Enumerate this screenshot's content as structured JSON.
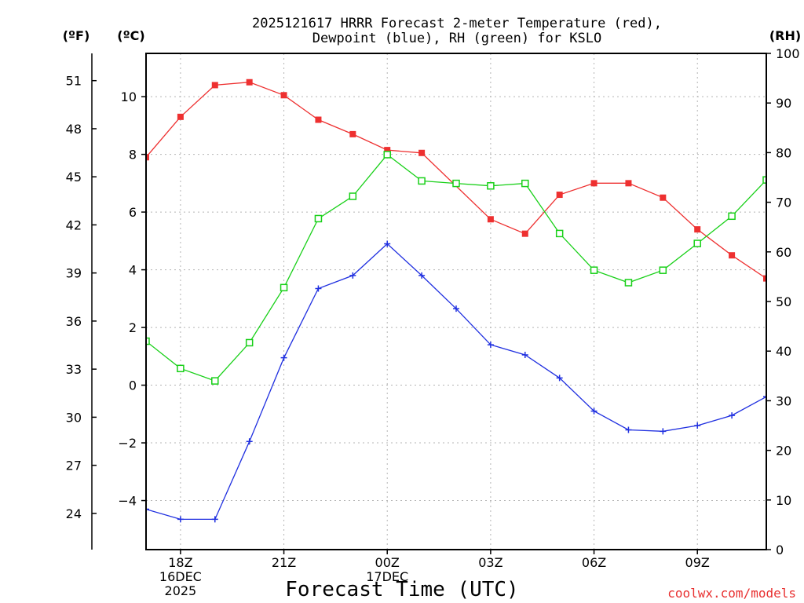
{
  "chart_data": {
    "type": "line",
    "title_line1": "2025121617 HRRR Forecast 2-meter Temperature (red),",
    "title_line2": "Dewpoint (blue), RH (green) for KSLO",
    "xlabel": "Forecast Time (UTC)",
    "credit": "coolwx.com/models",
    "units": {
      "fahrenheit": "(ºF)",
      "celsius": "(ºC)",
      "rh": "(RH)"
    },
    "x_range": [
      17,
      35
    ],
    "x_ticks": [
      {
        "x": 18,
        "lines": [
          "18Z",
          "16DEC",
          "2025"
        ]
      },
      {
        "x": 21,
        "lines": [
          "21Z"
        ]
      },
      {
        "x": 24,
        "lines": [
          "00Z",
          "17DEC"
        ]
      },
      {
        "x": 27,
        "lines": [
          "03Z"
        ]
      },
      {
        "x": 30,
        "lines": [
          "06Z"
        ]
      },
      {
        "x": 33,
        "lines": [
          "09Z"
        ]
      }
    ],
    "y_left_celsius": {
      "range": [
        -5.7,
        11.5
      ],
      "ticks": [
        -4,
        -2,
        0,
        2,
        4,
        6,
        8,
        10
      ],
      "tick_labels": [
        "−4",
        "−2",
        "0",
        "2",
        "4",
        "6",
        "8",
        "10"
      ]
    },
    "y_left_fahrenheit": {
      "ticks": [
        24,
        27,
        30,
        33,
        36,
        39,
        42,
        45,
        48,
        51
      ],
      "tick_labels": [
        "24",
        "27",
        "30",
        "33",
        "36",
        "39",
        "42",
        "45",
        "48",
        "51"
      ]
    },
    "y_right_rh": {
      "range": [
        0,
        100
      ],
      "ticks": [
        0,
        10,
        20,
        30,
        40,
        50,
        60,
        70,
        80,
        90,
        100
      ],
      "tick_labels": [
        "0",
        "10",
        "20",
        "30",
        "40",
        "50",
        "60",
        "70",
        "80",
        "90",
        "100"
      ]
    },
    "grid": true,
    "series": [
      {
        "name": "Temperature",
        "color": "#ee3030",
        "marker": "filled-square",
        "axis": "celsius",
        "x": [
          17,
          18,
          19,
          20,
          21,
          22,
          23,
          24,
          25,
          26,
          27,
          28,
          29,
          30,
          31,
          32,
          33,
          34,
          35
        ],
        "values": [
          7.9,
          9.3,
          10.4,
          10.5,
          10.05,
          9.2,
          8.7,
          8.15,
          8.05,
          null,
          5.75,
          5.25,
          6.6,
          7.0,
          7.0,
          6.5,
          5.4,
          4.5,
          3.7
        ]
      },
      {
        "name": "Dewpoint",
        "color": "#2030e0",
        "marker": "plus",
        "axis": "celsius",
        "x": [
          17,
          18,
          19,
          20,
          21,
          22,
          23,
          24,
          25,
          26,
          27,
          28,
          29,
          30,
          31,
          32,
          33,
          34,
          35
        ],
        "values": [
          -4.3,
          -4.65,
          -4.65,
          -1.95,
          0.95,
          3.35,
          3.8,
          4.9,
          3.8,
          2.65,
          1.4,
          1.05,
          0.25,
          -0.9,
          -1.55,
          -1.6,
          -1.4,
          -1.05,
          -0.4
        ]
      },
      {
        "name": "RH",
        "color": "#18d018",
        "marker": "open-square",
        "axis": "rh",
        "x": [
          17,
          18,
          19,
          20,
          21,
          22,
          23,
          24,
          25,
          26,
          27,
          28,
          29,
          30,
          31,
          32,
          33,
          34,
          35
        ],
        "values": [
          42,
          36.5,
          34,
          41.7,
          52.8,
          66.7,
          71.2,
          79.6,
          74.3,
          73.8,
          73.3,
          73.8,
          63.7,
          56.3,
          53.8,
          56.3,
          61.7,
          67.2,
          74.5
        ]
      }
    ]
  }
}
